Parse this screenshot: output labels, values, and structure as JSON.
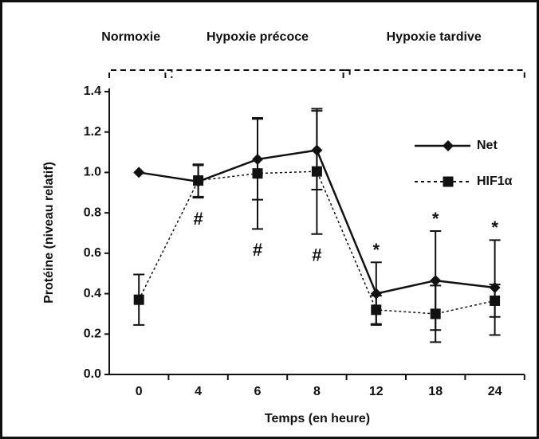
{
  "chart_data": {
    "type": "line",
    "xlabel": "Temps (en heure)",
    "ylabel": "Protéine (niveau relatif)",
    "categories": [
      "0",
      "4",
      "6",
      "8",
      "12",
      "18",
      "24"
    ],
    "series": [
      {
        "name": "Net",
        "color": "#111111",
        "marker": "diamond",
        "dash": "solid",
        "values": [
          1.0,
          0.955,
          1.065,
          1.11,
          0.4,
          0.465,
          0.43
        ],
        "errors": [
          null,
          0.08,
          0.2,
          0.195,
          0.155,
          0.245,
          0.235
        ]
      },
      {
        "name": "HIF1α",
        "color": "#111111",
        "marker": "square",
        "dash": "dotted",
        "values": [
          0.37,
          0.96,
          0.995,
          1.005,
          0.32,
          0.3,
          0.365
        ],
        "errors": [
          0.125,
          0.08,
          0.275,
          0.31,
          0.07,
          0.14,
          0.08
        ]
      }
    ],
    "annotations": [
      null,
      "#",
      "#",
      "#",
      "*",
      "*",
      "*"
    ],
    "phases": [
      {
        "label": "Normoxie",
        "from": "0",
        "to": "0"
      },
      {
        "label": "Hypoxie précoce",
        "from": "4",
        "to": "8"
      },
      {
        "label": "Hypoxie tardive",
        "from": "12",
        "to": "24"
      }
    ],
    "ylim": [
      0,
      1.4
    ],
    "yticks": [
      {
        "value": 0,
        "label": "0.0"
      },
      0.2,
      0.4,
      0.6,
      0.8,
      {
        "value": 1,
        "label": "1.0"
      },
      1.2,
      1.4
    ],
    "legend": "upper right",
    "grid": false
  }
}
